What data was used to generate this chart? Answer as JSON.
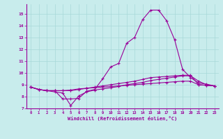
{
  "xlabel": "Windchill (Refroidissement éolien,°C)",
  "background_color": "#c8ecec",
  "line_color": "#990099",
  "grid_color": "#a8d8d8",
  "xlim": [
    -0.5,
    23.5
  ],
  "ylim": [
    7.0,
    15.8
  ],
  "xticks": [
    0,
    1,
    2,
    3,
    4,
    5,
    6,
    7,
    8,
    9,
    10,
    11,
    12,
    13,
    14,
    15,
    16,
    17,
    18,
    19,
    20,
    21,
    22,
    23
  ],
  "yticks": [
    7,
    8,
    9,
    10,
    11,
    12,
    13,
    14,
    15
  ],
  "series": [
    [
      8.8,
      8.6,
      8.5,
      8.5,
      8.5,
      8.5,
      8.6,
      8.7,
      8.8,
      8.9,
      9.0,
      9.1,
      9.2,
      9.3,
      9.45,
      9.6,
      9.65,
      9.7,
      9.75,
      9.8,
      9.8,
      9.0,
      8.95,
      8.9
    ],
    [
      8.8,
      8.6,
      8.5,
      8.5,
      7.8,
      7.8,
      7.85,
      8.45,
      8.6,
      9.5,
      10.5,
      10.8,
      12.5,
      13.0,
      14.5,
      15.3,
      15.3,
      14.4,
      12.8,
      10.3,
      9.6,
      9.15,
      9.05,
      8.9
    ],
    [
      8.8,
      8.6,
      8.5,
      8.4,
      8.3,
      7.25,
      8.05,
      8.4,
      8.55,
      8.65,
      8.75,
      8.85,
      9.0,
      9.1,
      9.2,
      9.35,
      9.45,
      9.55,
      9.65,
      9.75,
      9.75,
      9.3,
      9.0,
      8.9
    ],
    [
      8.8,
      8.6,
      8.5,
      8.5,
      8.5,
      8.55,
      8.65,
      8.7,
      8.75,
      8.8,
      8.85,
      8.9,
      8.95,
      9.0,
      9.05,
      9.1,
      9.15,
      9.2,
      9.25,
      9.3,
      9.3,
      9.0,
      8.95,
      8.9
    ]
  ]
}
